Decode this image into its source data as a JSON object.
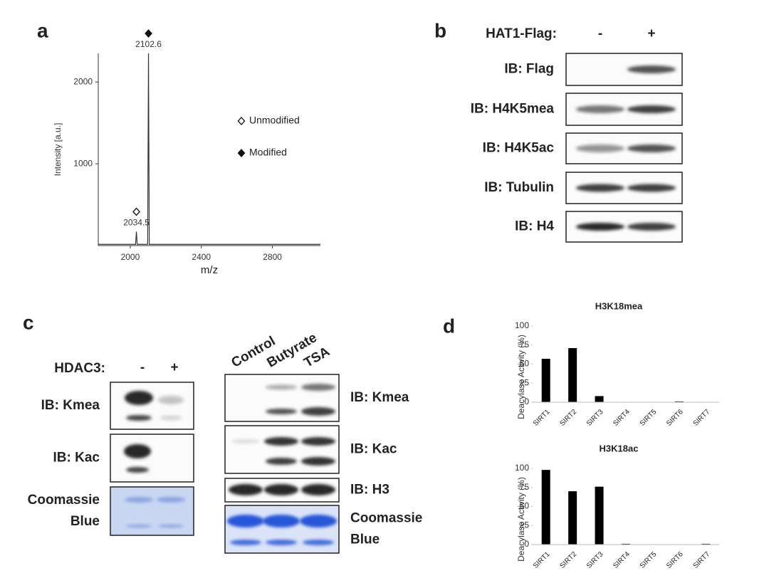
{
  "panel_labels": [
    "a",
    "b",
    "c",
    "d"
  ],
  "blot_b": {
    "header": "HAT1-Flag:",
    "lanes": [
      "-",
      "+"
    ],
    "rows": [
      [
        "IB: Flag"
      ],
      [
        "IB: H4K5mea"
      ],
      [
        "IB: H4K5ac"
      ],
      [
        "IB: Tubulin"
      ],
      [
        "IB: H4"
      ]
    ]
  },
  "blot_c_left": {
    "header": "HDAC3:",
    "lanes": [
      "-",
      "+"
    ],
    "rows": [
      [
        "IB: Kmea"
      ],
      [
        "IB: Kac"
      ],
      [
        "Coomassie",
        "Blue"
      ]
    ]
  },
  "blot_c_right": {
    "lanes": [
      "Control",
      "Butyrate",
      "TSA"
    ],
    "rows": [
      [
        "IB: Kmea"
      ],
      [
        "IB: Kac"
      ],
      [
        "IB: H3"
      ],
      [
        "Coomassie",
        "Blue"
      ]
    ]
  },
  "chart_data": [
    {
      "type": "line",
      "x_label": "m/z",
      "y_label": "Intensity [a.u.]",
      "xlim": [
        1820,
        3070
      ],
      "ylim": [
        0,
        2350
      ],
      "xticks": [
        2000,
        2400,
        2800
      ],
      "yticks": [
        1000,
        2000
      ],
      "color": "#333333",
      "legend": [
        "Unmodified",
        "Modified"
      ],
      "x": [
        1820,
        2030,
        2034.5,
        2039,
        2098,
        2102.6,
        2107,
        3070
      ],
      "values": [
        15,
        15,
        170,
        15,
        15,
        2350,
        15,
        15
      ],
      "peaks": [
        {
          "x": 2034.5,
          "marker": 0
        },
        {
          "x": 2102.6,
          "marker": 1
        }
      ]
    },
    {
      "type": "bar",
      "title": "H3K18mea",
      "y_label": "Deacylase Activity (%)",
      "categories": [
        "SIRT1",
        "SIRT2",
        "SIRT3",
        "SIRT4",
        "SIRT5",
        "SIRT6",
        "SIRT7"
      ],
      "values": [
        57,
        71,
        8,
        0,
        0,
        1,
        0
      ],
      "color": "#000000",
      "ylim": [
        0,
        100
      ],
      "yticks": [
        0,
        25,
        50,
        75,
        100
      ]
    },
    {
      "type": "bar",
      "title": "H3K18ac",
      "y_label": "Deacylase Activity (%)",
      "categories": [
        "SIRT1",
        "SIRT2",
        "SIRT3",
        "SIRT4",
        "SIRT5",
        "SIRT6",
        "SIRT7"
      ],
      "values": [
        98,
        70,
        76,
        1,
        0,
        0,
        1
      ],
      "color": "#000000",
      "ylim": [
        0,
        100
      ],
      "yticks": [
        0,
        25,
        50,
        75,
        100
      ]
    }
  ]
}
